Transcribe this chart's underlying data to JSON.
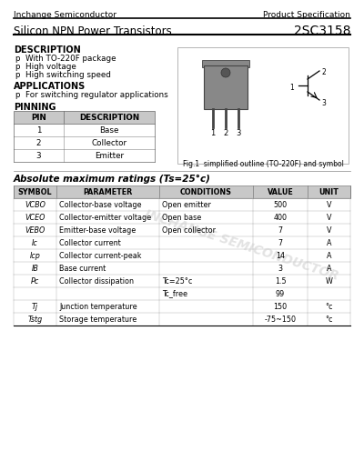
{
  "company": "Inchange Semiconductor",
  "spec_type": "Product Specification",
  "title": "Silicon NPN Power Transistors",
  "part_number": "2SC3158",
  "description_title": "DESCRIPTION",
  "description_items": [
    "p  With TO-220F package",
    "p  High voltage",
    "p  High switching speed"
  ],
  "applications_title": "APPLICATIONS",
  "applications_items": [
    "p  For switching regulator applications"
  ],
  "pinning_title": "PINNING",
  "pin_headers": [
    "PIN",
    "DESCRIPTION"
  ],
  "pin_rows": [
    [
      "1",
      "Base"
    ],
    [
      "2",
      "Collector"
    ],
    [
      "3",
      "Emitter"
    ]
  ],
  "fig_caption": "Fig.1  simplified outline (TO-220F) and symbol",
  "ratings_title": "Absolute maximum ratings (Ts=25°c)",
  "ratings_headers": [
    "SYMBOL",
    "PARAMETER",
    "CONDITIONS",
    "VALUE",
    "UNIT"
  ],
  "row_data": [
    [
      "VCBO",
      "Collector-base voltage",
      "Open emitter",
      "500",
      "V"
    ],
    [
      "VCEO",
      "Collector-emitter voltage",
      "Open base",
      "400",
      "V"
    ],
    [
      "VEBO",
      "Emitter-base voltage",
      "Open collector",
      "7",
      "V"
    ],
    [
      "Ic",
      "Collector current",
      "",
      "7",
      "A"
    ],
    [
      "Icp",
      "Collector current-peak",
      "",
      "14",
      "A"
    ],
    [
      "IB",
      "Base current",
      "",
      "3",
      "A"
    ],
    [
      "Pc",
      "Collector dissipation",
      "Tc=25°c",
      "1.5",
      "W"
    ],
    [
      "",
      "",
      "Tc_free",
      "99",
      ""
    ],
    [
      "Tj",
      "Junction temperature",
      "",
      "150",
      "°c"
    ],
    [
      "Tstg",
      "Storage temperature",
      "",
      "-75~150",
      "°c"
    ]
  ],
  "watermark": "INCHANGE SEMICONDUCTOR",
  "bg_color": "#ffffff"
}
